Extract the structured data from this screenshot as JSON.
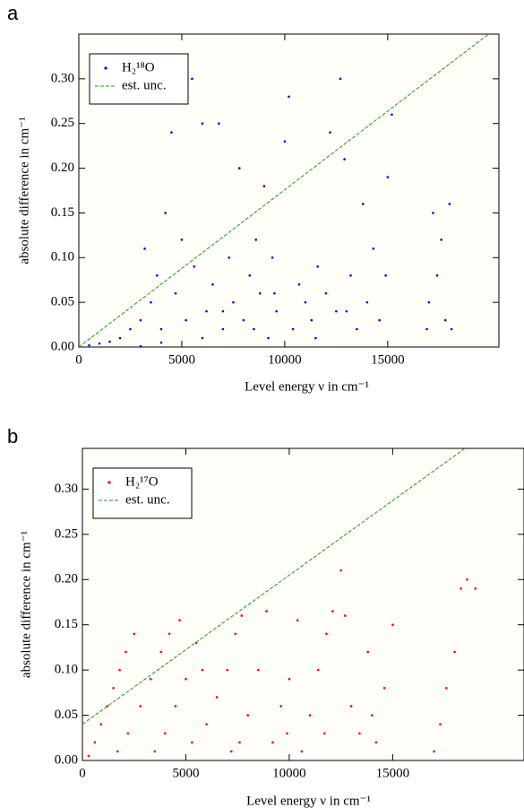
{
  "chart_data": [
    {
      "type": "scatter",
      "label": "a",
      "xlabel": "Level energy ν in cm⁻¹",
      "ylabel": "absolute difference in cm⁻¹",
      "xlim": [
        0,
        20400
      ],
      "ylim": [
        0,
        0.35
      ],
      "xticks": [
        0,
        5000,
        10000,
        15000
      ],
      "yticks": [
        {
          "value": 0,
          "label": "0.00"
        },
        {
          "value": 0.05,
          "label": "0.05"
        },
        {
          "value": 0.1,
          "label": "0.10"
        },
        {
          "value": 0.15,
          "label": "0.15"
        },
        {
          "value": 0.2,
          "label": "0.20"
        },
        {
          "value": 0.25,
          "label": "0.25"
        },
        {
          "value": 0.3,
          "label": "0.30"
        }
      ],
      "legend": "upper left",
      "series": [
        {
          "name": "H₂¹⁸O",
          "color": "#0000ff",
          "type": "scatter",
          "x": [
            500,
            1000,
            1500,
            2000,
            2500,
            3000,
            3200,
            3500,
            3800,
            4000,
            4200,
            4500,
            4700,
            5000,
            5200,
            5500,
            5600,
            6000,
            6200,
            6500,
            6800,
            7000,
            7300,
            7500,
            7800,
            8000,
            8300,
            8600,
            8800,
            9000,
            9200,
            9400,
            9600,
            10000,
            10200,
            10400,
            10700,
            11000,
            11300,
            11600,
            12000,
            12200,
            12500,
            12700,
            12900,
            13200,
            13500,
            13800,
            14000,
            14300,
            14600,
            14900,
            15000,
            15200,
            16900,
            17000,
            17200,
            17400,
            17600,
            17800,
            18000,
            18100,
            6000,
            7000,
            8500,
            9500,
            11500,
            13000,
            4000,
            3000
          ],
          "values": [
            0.002,
            0.004,
            0.006,
            0.01,
            0.02,
            0.03,
            0.11,
            0.05,
            0.08,
            0.02,
            0.15,
            0.24,
            0.06,
            0.12,
            0.03,
            0.3,
            0.09,
            0.25,
            0.04,
            0.07,
            0.25,
            0.02,
            0.1,
            0.05,
            0.2,
            0.03,
            0.08,
            0.12,
            0.06,
            0.18,
            0.01,
            0.1,
            0.04,
            0.23,
            0.28,
            0.02,
            0.07,
            0.05,
            0.03,
            0.09,
            0.06,
            0.24,
            0.04,
            0.3,
            0.21,
            0.08,
            0.02,
            0.16,
            0.05,
            0.11,
            0.03,
            0.08,
            0.19,
            0.26,
            0.02,
            0.05,
            0.15,
            0.08,
            0.12,
            0.03,
            0.16,
            0.02,
            0.01,
            0.04,
            0.02,
            0.06,
            0.01,
            0.04,
            0.005,
            0.001
          ]
        },
        {
          "name": "est. unc.",
          "color": "#1a9a1a",
          "type": "line",
          "dashed": true,
          "x": [
            0,
            19900
          ],
          "values": [
            0,
            0.35
          ]
        }
      ]
    },
    {
      "type": "scatter",
      "label": "b",
      "xlabel": "Level energy ν in cm⁻¹",
      "ylabel": "absolute difference in cm⁻¹",
      "xlim": [
        0,
        21350
      ],
      "ylim": [
        0,
        0.345
      ],
      "xticks": [
        0,
        5000,
        10000,
        15000
      ],
      "yticks": [
        {
          "value": 0,
          "label": "0.00"
        },
        {
          "value": 0.05,
          "label": "0.05"
        },
        {
          "value": 0.1,
          "label": "0.10"
        },
        {
          "value": 0.15,
          "label": "0.15"
        },
        {
          "value": 0.2,
          "label": "0.20"
        },
        {
          "value": 0.25,
          "label": "0.25"
        },
        {
          "value": 0.3,
          "label": "0.30"
        }
      ],
      "legend": "upper left",
      "series": [
        {
          "name": "H₂¹⁷O",
          "color": "#ff0000",
          "type": "scatter",
          "x": [
            300,
            600,
            900,
            1200,
            1500,
            1800,
            2100,
            2500,
            1700,
            2200,
            2800,
            3300,
            3800,
            4200,
            4700,
            3500,
            4000,
            4500,
            5000,
            5500,
            5800,
            6000,
            6500,
            7000,
            7400,
            7700,
            7200,
            8000,
            8500,
            8900,
            9200,
            9600,
            10000,
            10400,
            10600,
            11000,
            11400,
            11800,
            12100,
            12500,
            12700,
            13000,
            13400,
            13800,
            14200,
            14600,
            15000,
            17000,
            17300,
            17600,
            18000,
            18300,
            18600,
            19000,
            5300,
            9900,
            7600,
            11700,
            14000
          ],
          "values": [
            0.005,
            0.02,
            0.04,
            0.06,
            0.08,
            0.1,
            0.12,
            0.14,
            0.01,
            0.03,
            0.06,
            0.09,
            0.12,
            0.14,
            0.155,
            0.01,
            0.03,
            0.06,
            0.09,
            0.13,
            0.1,
            0.04,
            0.07,
            0.1,
            0.14,
            0.16,
            0.01,
            0.05,
            0.1,
            0.165,
            0.02,
            0.06,
            0.09,
            0.155,
            0.01,
            0.05,
            0.1,
            0.14,
            0.165,
            0.21,
            0.16,
            0.06,
            0.03,
            0.12,
            0.02,
            0.08,
            0.15,
            0.01,
            0.04,
            0.08,
            0.12,
            0.19,
            0.2,
            0.19,
            0.02,
            0.03,
            0.02,
            0.03,
            0.05
          ]
        },
        {
          "name": "est. unc.",
          "color": "#1a9a1a",
          "type": "line",
          "dashed": true,
          "x": [
            0,
            18500
          ],
          "values": [
            0.04,
            0.345
          ]
        }
      ]
    }
  ]
}
